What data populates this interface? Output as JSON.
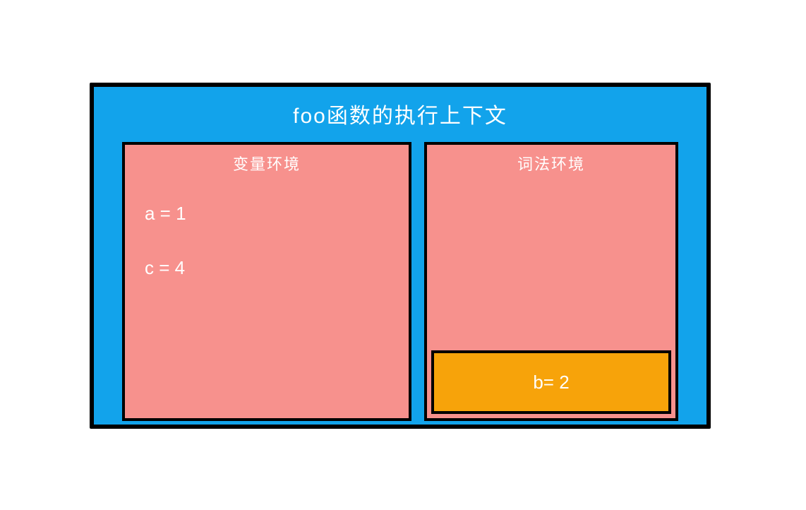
{
  "diagram": {
    "container": {
      "title": "foo函数的执行上下文",
      "background_color": "#12a3eb",
      "border_color": "#000000",
      "border_width": 6,
      "title_color": "#ffffff",
      "title_fontsize": 30
    },
    "left_panel": {
      "title": "变量环境",
      "background_color": "#f7918d",
      "border_color": "#000000",
      "border_width": 4,
      "title_color": "#ffffff",
      "title_fontsize": 22,
      "variables": [
        {
          "text": "a = 1"
        },
        {
          "text": "c = 4"
        }
      ],
      "var_color": "#ffffff",
      "var_fontsize": 26
    },
    "right_panel": {
      "title": "词法环境",
      "background_color": "#f7918d",
      "border_color": "#000000",
      "border_width": 4,
      "title_color": "#ffffff",
      "title_fontsize": 22,
      "inner_box": {
        "text": "b= 2",
        "background_color": "#f7a30a",
        "border_color": "#000000",
        "border_width": 4,
        "text_color": "#ffffff",
        "text_fontsize": 26
      }
    }
  }
}
